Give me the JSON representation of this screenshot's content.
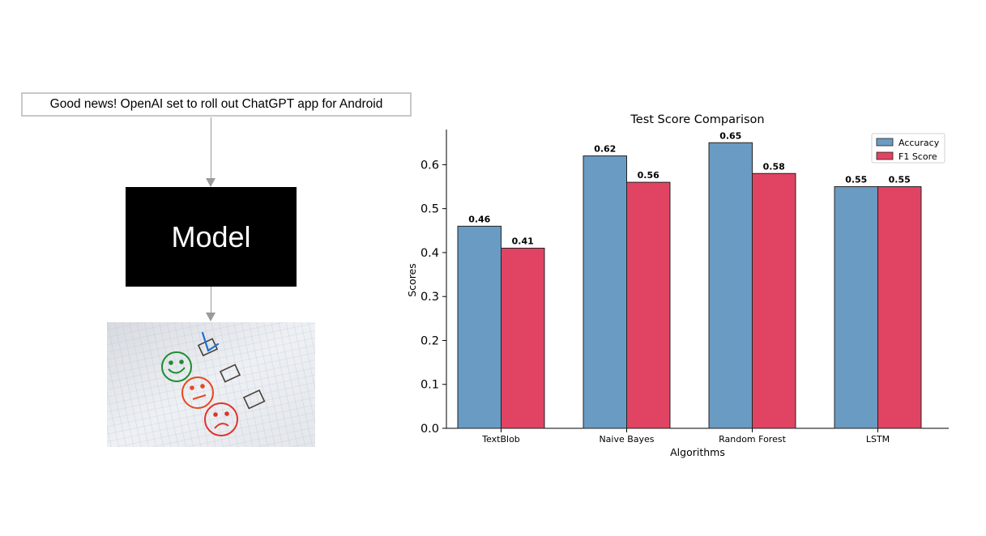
{
  "diagram": {
    "input_text": "Good news! OpenAI set to roll out ChatGPT app for Android",
    "model_label": "Model",
    "photo": {
      "colors": {
        "happy": "#1e8c2e",
        "neutral": "#e8481f",
        "sad": "#e2332a",
        "check": "#1f6fd0",
        "grid": "#a9c3de"
      }
    }
  },
  "chart_data": {
    "type": "bar",
    "title": "Test Score Comparison",
    "xlabel": "Algorithms",
    "ylabel": "Scores",
    "categories": [
      "TextBlob",
      "Naive Bayes",
      "Random Forest",
      "LSTM"
    ],
    "series": [
      {
        "name": "Accuracy",
        "values": [
          0.46,
          0.62,
          0.65,
          0.55
        ],
        "labels": [
          "0.46",
          "0.62",
          "0.65",
          "0.55"
        ],
        "color": "#6a9bc3"
      },
      {
        "name": "F1 Score",
        "values": [
          0.41,
          0.56,
          0.58,
          0.55
        ],
        "labels": [
          "0.41",
          "0.56",
          "0.58",
          "0.55"
        ],
        "color": "#e04462"
      }
    ],
    "ylim": [
      0,
      0.68
    ],
    "yticks": [
      0.0,
      0.1,
      0.2,
      0.3,
      0.4,
      0.5,
      0.6
    ],
    "ytick_labels": [
      "0.0",
      "0.1",
      "0.2",
      "0.3",
      "0.4",
      "0.5",
      "0.6"
    ],
    "grid": false,
    "legend_position": "top-right"
  }
}
